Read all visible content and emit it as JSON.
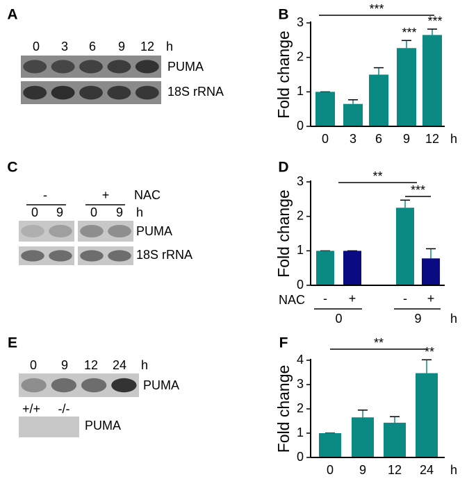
{
  "panel_letters": [
    "A",
    "B",
    "C",
    "D",
    "E",
    "F"
  ],
  "gels": [
    {
      "lanes": [
        "0",
        "3",
        "6",
        "9",
        "12"
      ],
      "unit": "h",
      "rows": [
        "PUMA",
        "18S rRNA"
      ]
    },
    {
      "conditions": [
        "-",
        "+"
      ],
      "condition_label": "NAC",
      "lanes": [
        "0",
        "9",
        "0",
        "9"
      ],
      "unit": "h",
      "rows": [
        "PUMA",
        "18S rRNA"
      ]
    },
    {
      "lanes": [
        "0",
        "9",
        "12",
        "24"
      ],
      "unit": "h",
      "rows": [
        "PUMA"
      ],
      "genotypes": [
        "+/+",
        "-/-"
      ],
      "genotype_row": "PUMA"
    }
  ],
  "chart_data": [
    {
      "type": "bar",
      "ylabel": "Fold change",
      "x_unit": "h",
      "categories": [
        "0",
        "3",
        "6",
        "9",
        "12"
      ],
      "values": [
        1,
        0.65,
        1.5,
        2.27,
        2.65
      ],
      "errors": [
        0,
        0.12,
        0.2,
        0.22,
        0.17
      ],
      "bar_labels": [
        null,
        null,
        null,
        "***",
        "***"
      ],
      "bracket_labels": [
        "***"
      ],
      "color": "#0b8a83",
      "ylim": [
        0,
        3
      ],
      "yticks": [
        0,
        1,
        2,
        3
      ]
    },
    {
      "type": "grouped_bar",
      "ylabel": "Fold change",
      "x_unit": "h",
      "group_label": "NAC",
      "categories": [
        "0",
        "9"
      ],
      "series": [
        {
          "name": "-",
          "color": "#0b8a83",
          "values": [
            1,
            2.25
          ],
          "errors": [
            0,
            0.22
          ]
        },
        {
          "name": "+",
          "color": "#0a0a82",
          "values": [
            1,
            0.78
          ],
          "errors": [
            0,
            0.28
          ]
        }
      ],
      "bracket_labels": [
        "**",
        "***"
      ],
      "ylim": [
        0,
        3
      ],
      "yticks": [
        0,
        1,
        2,
        3
      ]
    },
    {
      "type": "bar",
      "ylabel": "Fold change",
      "x_unit": "h",
      "categories": [
        "0",
        "9",
        "12",
        "24"
      ],
      "values": [
        1,
        1.65,
        1.43,
        3.47
      ],
      "errors": [
        0,
        0.3,
        0.25,
        0.55
      ],
      "bar_labels": [
        null,
        null,
        null,
        "**"
      ],
      "bracket_labels": [
        "**"
      ],
      "color": "#0b8a83",
      "ylim": [
        0,
        4
      ],
      "yticks": [
        0,
        1,
        2,
        3,
        4
      ]
    }
  ]
}
